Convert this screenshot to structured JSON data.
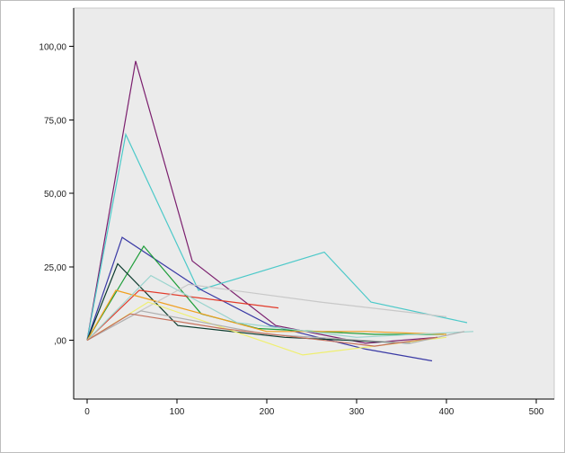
{
  "chart_data": {
    "type": "line",
    "title": "",
    "xlabel": "",
    "ylabel": "",
    "xlim": [
      -15,
      520
    ],
    "ylim": [
      -20,
      113
    ],
    "grid": false,
    "legend": "none",
    "plot_background": "#ebebeb",
    "x_ticks": [
      {
        "value": 0,
        "label": "0"
      },
      {
        "value": 100,
        "label": "100"
      },
      {
        "value": 200,
        "label": "200"
      },
      {
        "value": 300,
        "label": "300"
      },
      {
        "value": 400,
        "label": "400"
      },
      {
        "value": 500,
        "label": "500"
      }
    ],
    "y_ticks": [
      {
        "value": 0,
        "label": ",00"
      },
      {
        "value": 25,
        "label": "25,00"
      },
      {
        "value": 50,
        "label": "50,00"
      },
      {
        "value": 75,
        "label": "75,00"
      },
      {
        "value": 100,
        "label": "100,00"
      }
    ],
    "series": [
      {
        "color": "#7b1f6e",
        "points": [
          [
            0,
            0
          ],
          [
            54,
            95
          ],
          [
            117,
            27
          ],
          [
            210,
            5
          ],
          [
            310,
            -1
          ],
          [
            390,
            1
          ]
        ]
      },
      {
        "color": "#4cc9c9",
        "points": [
          [
            0,
            0
          ],
          [
            43,
            70
          ],
          [
            124,
            17
          ],
          [
            264,
            30
          ],
          [
            316,
            13
          ],
          [
            423,
            6
          ]
        ]
      },
      {
        "color": "#3a3aa5",
        "points": [
          [
            0,
            0
          ],
          [
            39,
            35
          ],
          [
            128,
            17
          ],
          [
            204,
            5
          ],
          [
            310,
            -3
          ],
          [
            384,
            -7
          ]
        ]
      },
      {
        "color": "#1f9e3a",
        "points": [
          [
            0,
            0
          ],
          [
            63,
            32
          ],
          [
            127,
            9
          ],
          [
            190,
            4
          ],
          [
            320,
            2
          ],
          [
            397,
            2
          ]
        ]
      },
      {
        "color": "#0c3b2e",
        "points": [
          [
            0,
            0
          ],
          [
            34,
            26
          ],
          [
            101,
            5
          ],
          [
            220,
            1
          ],
          [
            360,
            -1
          ]
        ]
      },
      {
        "color": "#e23a2a",
        "points": [
          [
            0,
            0
          ],
          [
            58,
            17
          ],
          [
            213,
            11
          ]
        ]
      },
      {
        "color": "#f0a020",
        "points": [
          [
            0,
            0
          ],
          [
            32,
            17
          ],
          [
            200,
            3
          ],
          [
            310,
            3
          ],
          [
            400,
            2
          ]
        ]
      },
      {
        "color": "#9ad4ce",
        "points": [
          [
            0,
            0
          ],
          [
            71,
            22
          ],
          [
            167,
            6
          ],
          [
            300,
            1
          ],
          [
            430,
            3
          ]
        ]
      },
      {
        "color": "#c8c8c8",
        "points": [
          [
            0,
            0
          ],
          [
            113,
            19
          ],
          [
            260,
            13
          ],
          [
            400,
            8
          ]
        ]
      },
      {
        "color": "#efef70",
        "points": [
          [
            0,
            0
          ],
          [
            68,
            13
          ],
          [
            240,
            -5
          ],
          [
            400,
            1
          ]
        ]
      },
      {
        "color": "#b0b0b0",
        "points": [
          [
            0,
            0
          ],
          [
            60,
            10
          ],
          [
            200,
            2
          ],
          [
            360,
            -1
          ],
          [
            420,
            3
          ]
        ]
      },
      {
        "color": "#c56f5a",
        "points": [
          [
            0,
            0
          ],
          [
            48,
            9
          ],
          [
            150,
            4
          ],
          [
            320,
            -2
          ],
          [
            390,
            1
          ]
        ]
      }
    ]
  }
}
